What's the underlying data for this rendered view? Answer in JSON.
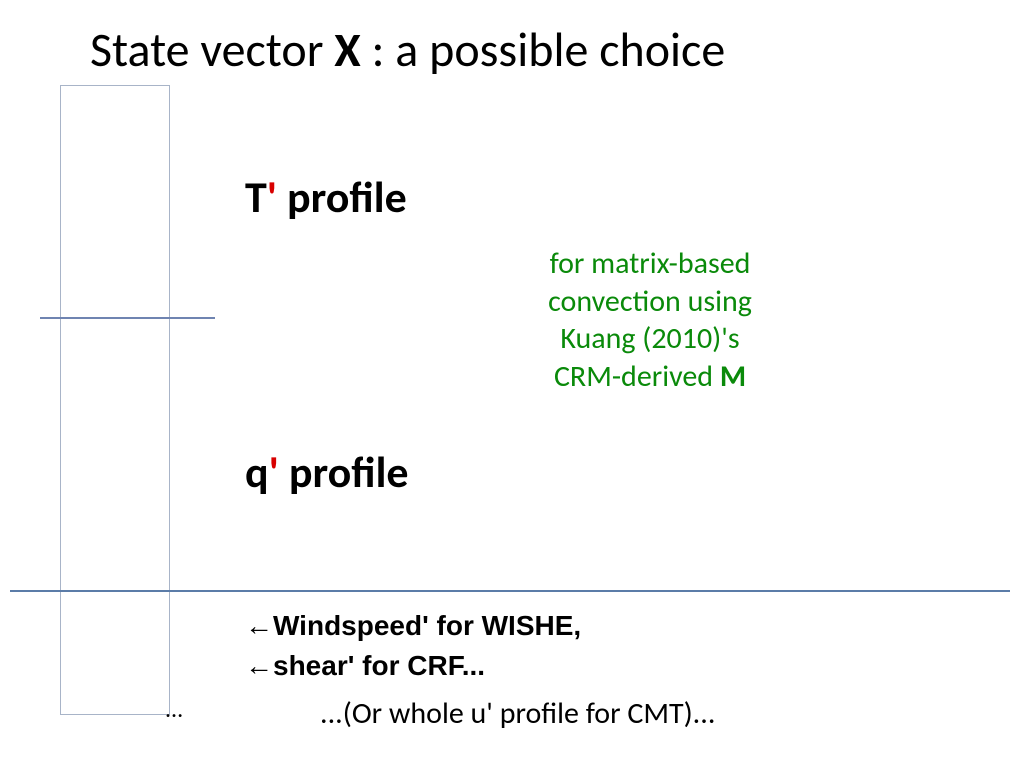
{
  "title": {
    "part1": "State vector ",
    "bold": "X",
    "part2": " : a possible choice"
  },
  "tprofile": {
    "T": "T",
    "prime": "'",
    "rest": " profile"
  },
  "green": {
    "l1": "for matrix-based",
    "l2": "convection using",
    "l3": "Kuang (2010)'s",
    "l4a": "CRM-derived ",
    "l4b": "M"
  },
  "qprofile": {
    "q": "q",
    "prime": "'",
    "rest": " profile"
  },
  "wishe": {
    "arrow": "←",
    "text": "Windspeed' for WISHE,"
  },
  "crf": {
    "arrow": "←",
    "text": "shear' for CRF..."
  },
  "dots": "...",
  "cmt": "...(Or whole u' profile for CMT)...",
  "colors": {
    "prime_red": "#d80000",
    "green_text": "#0a8a0a",
    "box_border": "#a8b4c8",
    "hline": "#5b7ca8",
    "background": "#ffffff"
  },
  "layout": {
    "slide_w": 1024,
    "slide_h": 768,
    "title_fontsize": 48,
    "profile_fontsize": 44,
    "green_fontsize": 30,
    "bullet_fontsize": 28,
    "cmt_fontsize": 30
  }
}
